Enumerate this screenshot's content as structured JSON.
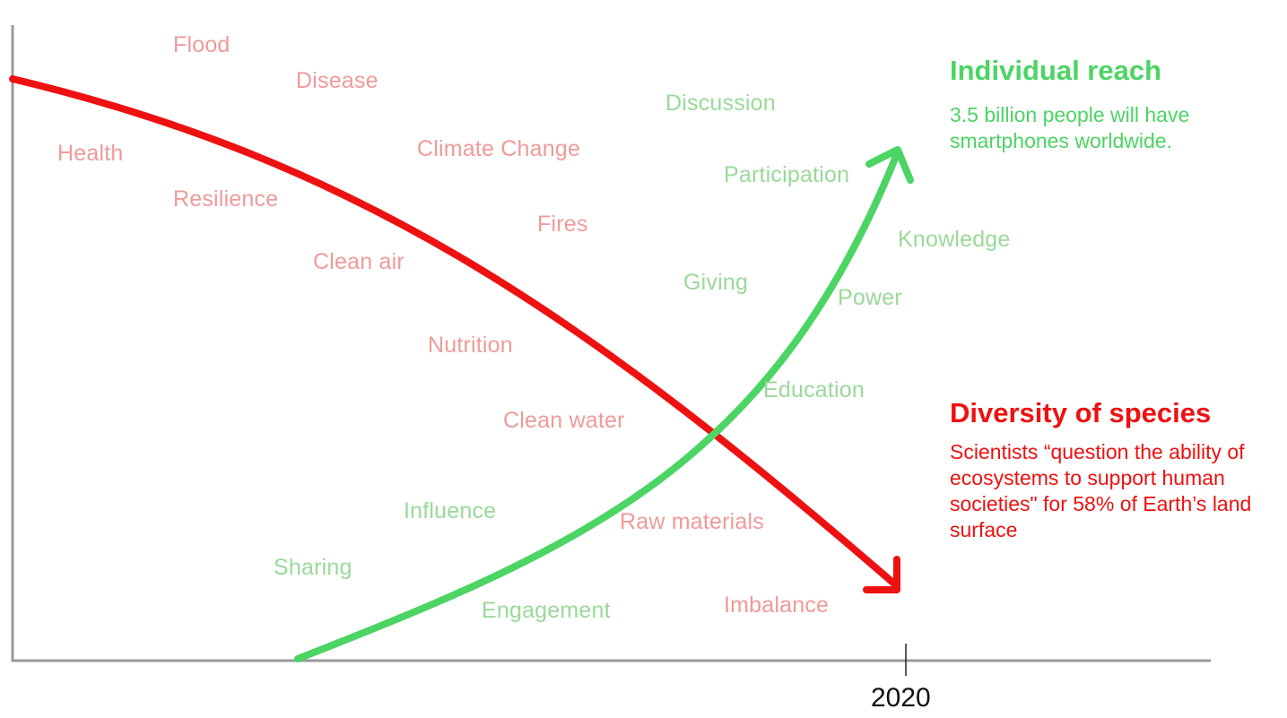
{
  "red_words": [
    "Flood",
    "Disease",
    "Health",
    "Climate Change",
    "Resilience",
    "Fires",
    "Clean air",
    "Nutrition",
    "Clean water",
    "Raw materials",
    "Imbalance"
  ],
  "green_words": [
    "Discussion",
    "Participation",
    "Knowledge",
    "Giving",
    "Power",
    "Education",
    "Influence",
    "Sharing",
    "Engagement"
  ],
  "individual_reach": {
    "title": "Individual reach",
    "body": "3.5 billion people will have smartphones worldwide."
  },
  "diversity": {
    "title": "Diversity of species",
    "body": "Scientists “question the ability of ecosystems to support human societies\" for 58% of Earth’s land surface"
  },
  "axis": {
    "year_label": "2020"
  },
  "colors": {
    "red": "#ee1111",
    "green": "#4cd464",
    "axis": "#999999"
  }
}
